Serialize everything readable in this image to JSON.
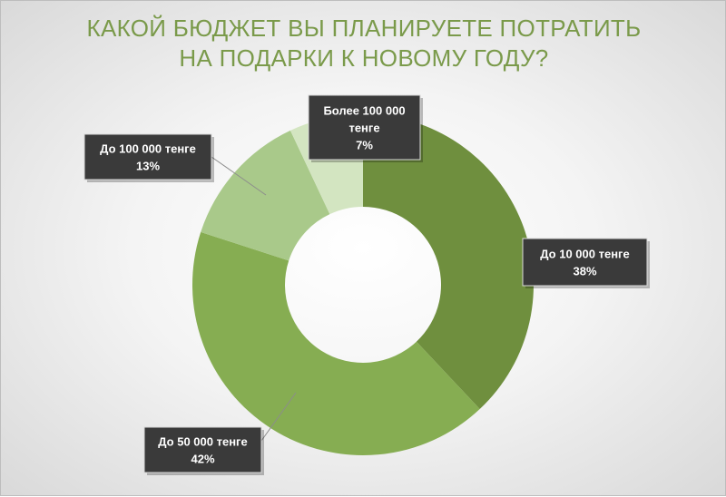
{
  "chart_data": {
    "type": "pie",
    "variant": "doughnut",
    "title": [
      "КАКОЙ БЮДЖЕТ ВЫ ПЛАНИРУЕТЕ ПОТРАТИТЬ",
      "НА ПОДАРКИ К НОВОМУ ГОДУ?"
    ],
    "categories": [
      "До 10 000 тенге",
      "До 50 000 тенге",
      "До 100 000 тенге",
      "Более 100 000 тенге"
    ],
    "values": [
      38,
      42,
      13,
      7
    ],
    "value_labels": [
      "38%",
      "42%",
      "13%",
      "7%"
    ],
    "label_lines": [
      [
        "До 10 000 тенге",
        "38%"
      ],
      [
        "До 50 000 тенге",
        "42%"
      ],
      [
        "До 100 000 тенге",
        "13%"
      ],
      [
        "Более 100 000",
        "тенге",
        "7%"
      ]
    ],
    "colors": [
      "#6f8f3e",
      "#86ad52",
      "#a9c98a",
      "#d3e5c1"
    ],
    "legend": "none",
    "start_angle": "12 o'clock, clockwise",
    "label_style": "dark callout boxes with leader lines"
  }
}
